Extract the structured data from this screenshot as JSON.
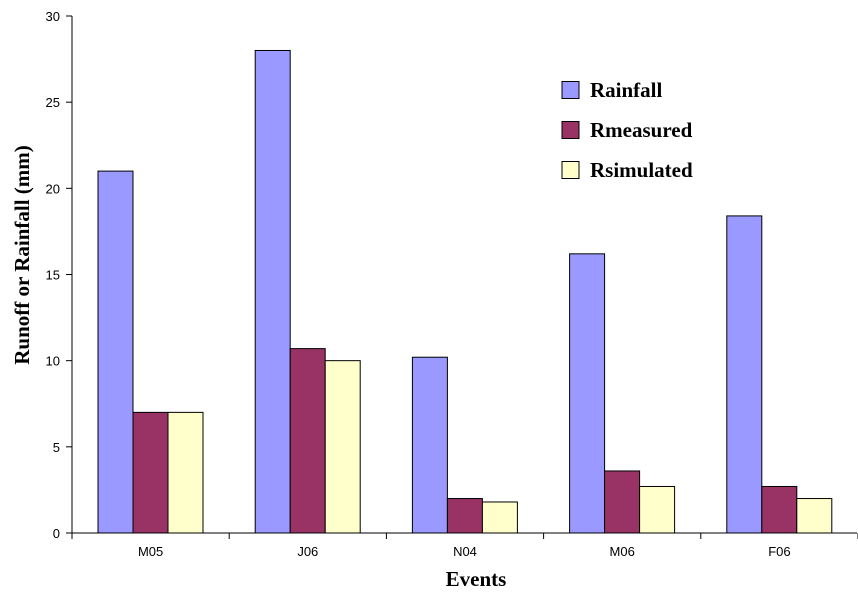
{
  "chart_data": {
    "type": "bar",
    "title": "",
    "xlabel": "Events",
    "ylabel": "Runoff or Rainfall (mm)",
    "categories": [
      "M05",
      "J06",
      "N04",
      "M06",
      "F06"
    ],
    "ylim": [
      0,
      30
    ],
    "yticks": [
      0,
      5,
      10,
      15,
      20,
      25,
      30
    ],
    "grid": false,
    "legend_position": "top-right",
    "series": [
      {
        "name": "Rainfall",
        "color": "#9999ff",
        "values": [
          21.0,
          28.0,
          10.2,
          16.2,
          18.4
        ]
      },
      {
        "name": "Rmeasured",
        "color": "#993366",
        "values": [
          7.0,
          10.7,
          2.0,
          3.6,
          2.7
        ]
      },
      {
        "name": "Rsimulated",
        "color": "#ffffcc",
        "values": [
          7.0,
          10.0,
          1.8,
          2.7,
          2.0
        ]
      }
    ]
  }
}
